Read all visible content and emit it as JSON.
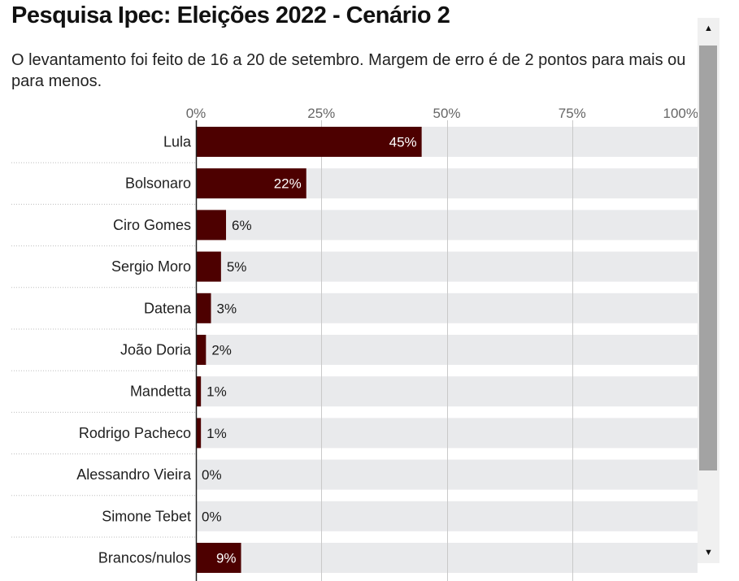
{
  "page": {
    "title": "Pesquisa Ipec: Eleições 2022 - Cenário 2",
    "subtitle": "O levantamento foi feito de 16 a 20 de setembro. Margem de erro é de 2 pontos para mais ou para menos."
  },
  "colors": {
    "bar": "#4d0000",
    "track": "#e9eaec",
    "grid": "#c9c9c9",
    "label_inside": "#ffffff",
    "label_outside": "#1a1a1a"
  },
  "scrollbar": {
    "up_icon": "▲",
    "down_icon": "▼",
    "position_fraction": 0.0,
    "visible_fraction": 0.85
  },
  "chart_data": {
    "type": "bar",
    "orientation": "horizontal",
    "title": "Pesquisa Ipec: Eleições 2022 - Cenário 2",
    "subtitle": "O levantamento foi feito de 16 a 20 de setembro. Margem de erro é de 2 pontos para mais ou para menos.",
    "categories": [
      "Lula",
      "Bolsonaro",
      "Ciro Gomes",
      "Sergio Moro",
      "Datena",
      "João Doria",
      "Mandetta",
      "Rodrigo Pacheco",
      "Alessandro Vieira",
      "Simone Tebet",
      "Brancos/nulos"
    ],
    "values": [
      45,
      22,
      6,
      5,
      3,
      2,
      1,
      1,
      0,
      0,
      9
    ],
    "value_labels": [
      "45%",
      "22%",
      "6%",
      "5%",
      "3%",
      "2%",
      "1%",
      "1%",
      "0%",
      "0%",
      "9%"
    ],
    "xlim": [
      0,
      100
    ],
    "ticks": [
      0,
      25,
      50,
      75,
      100
    ],
    "tick_labels": [
      "0%",
      "25%",
      "50%",
      "75%",
      "100%"
    ],
    "grid": true,
    "legend": "none"
  }
}
